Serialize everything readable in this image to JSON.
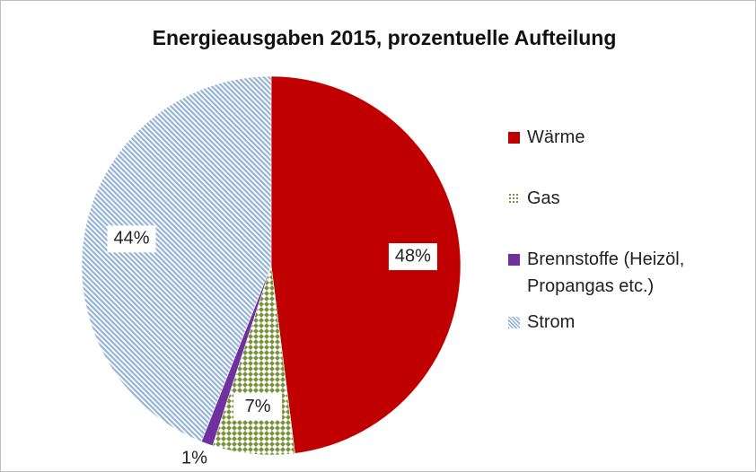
{
  "chart_data": {
    "type": "pie",
    "title": "Energieausgaben 2015, prozentuelle Aufteilung",
    "categories": [
      "Wärme",
      "Gas",
      "Brennstoffe (Heizöl, Propangas etc.)",
      "Strom"
    ],
    "values": [
      48,
      7,
      1,
      44
    ],
    "value_labels": [
      "48%",
      "7%",
      "1%",
      "44%"
    ],
    "colors": [
      "#c00000",
      "#77933c",
      "#7030a0",
      "#95b3d7"
    ],
    "legend": "right"
  }
}
